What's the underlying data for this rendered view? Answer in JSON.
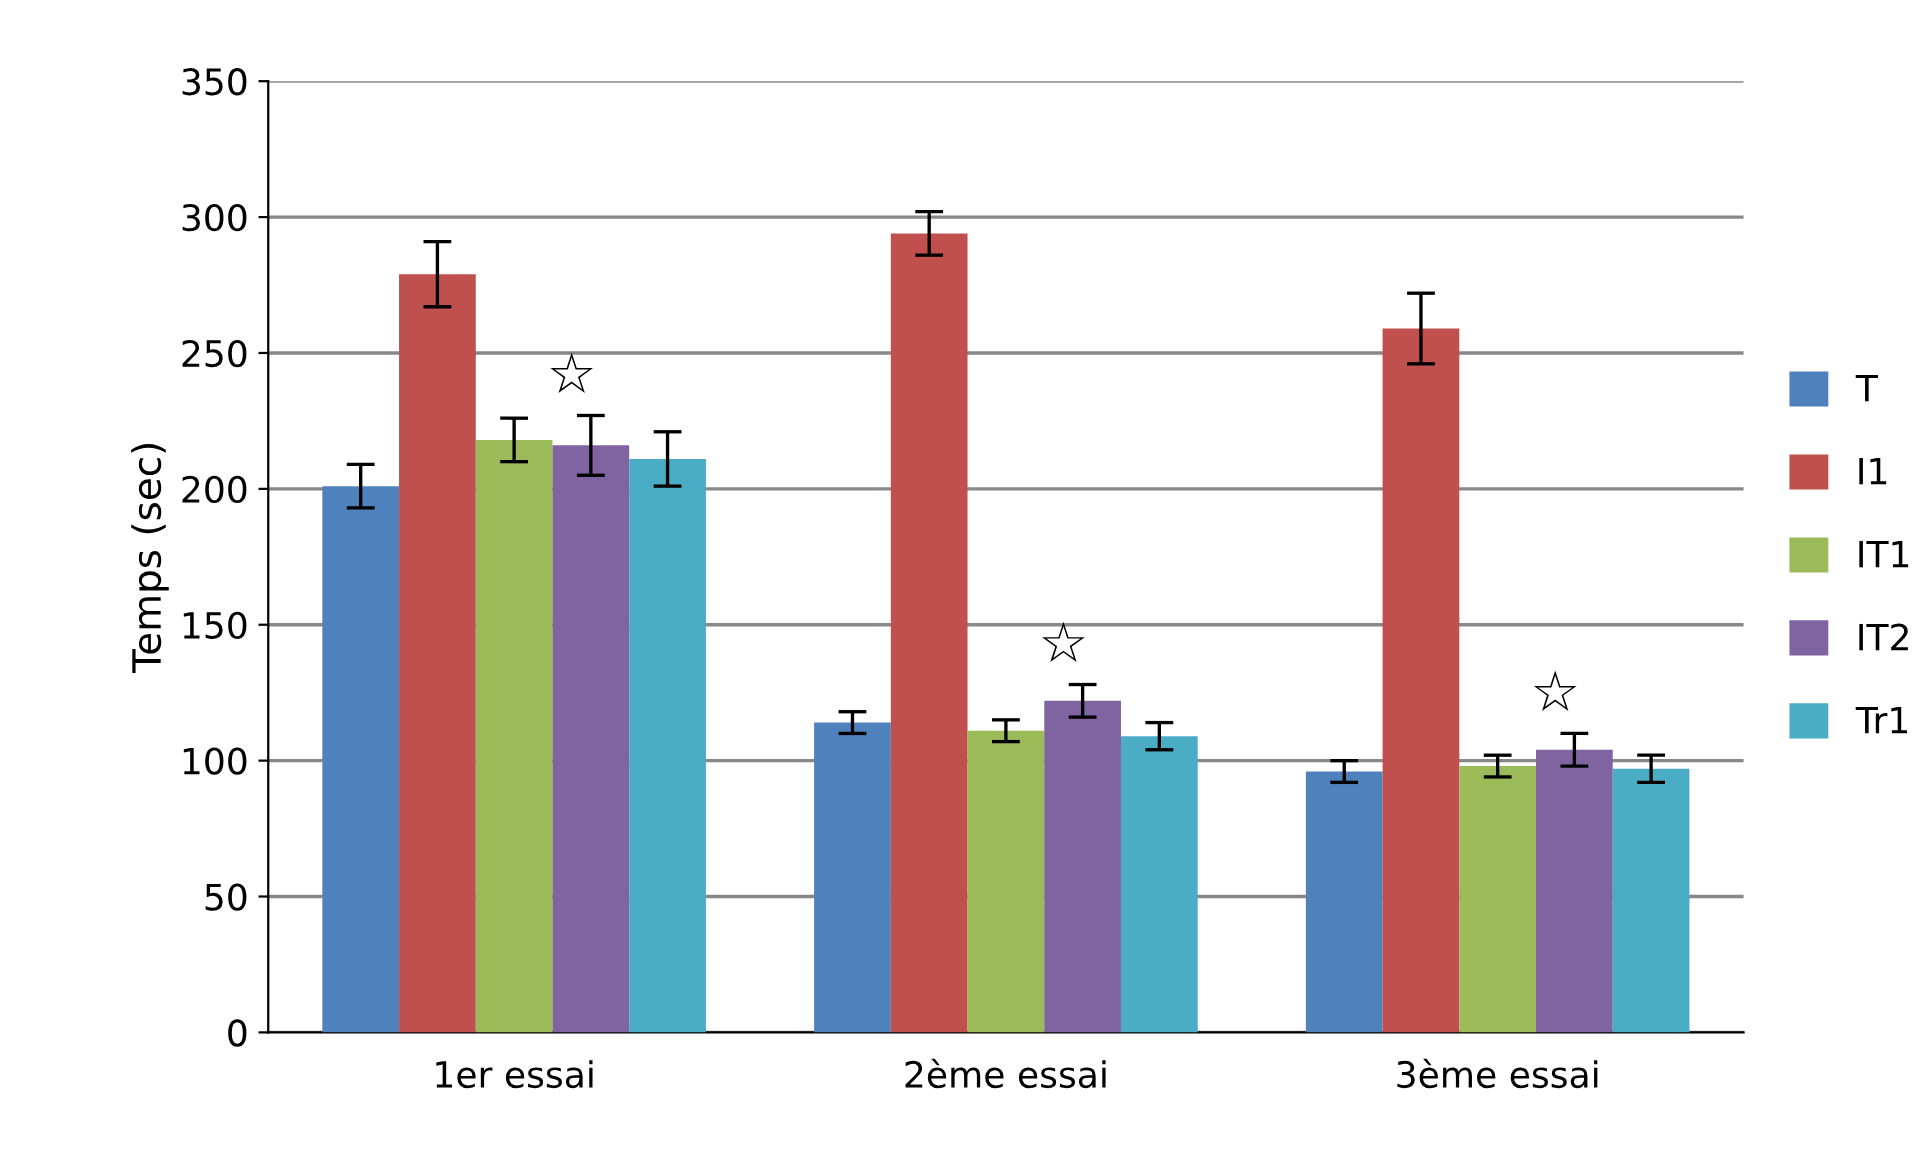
{
  "chart_data": {
    "type": "bar",
    "ylabel": "Temps (sec)",
    "categories": [
      "1er essai",
      "2ème essai",
      "3ème essai"
    ],
    "series": [
      {
        "name": "T",
        "color": "#4f81bd",
        "values": [
          201,
          114,
          96
        ],
        "errors": [
          8,
          4,
          4
        ]
      },
      {
        "name": "I1",
        "color": "#c0504d",
        "values": [
          279,
          294,
          259
        ],
        "errors": [
          12,
          8,
          13
        ]
      },
      {
        "name": "IT1",
        "color": "#9bbb59",
        "values": [
          218,
          111,
          98
        ],
        "errors": [
          8,
          4,
          4
        ]
      },
      {
        "name": "IT2",
        "color": "#8064a2",
        "values": [
          216,
          122,
          104
        ],
        "errors": [
          11,
          6,
          6
        ]
      },
      {
        "name": "Tr1",
        "color": "#4bacc6",
        "values": [
          211,
          109,
          97
        ],
        "errors": [
          10,
          5,
          5
        ]
      }
    ],
    "annotations": [
      "☆",
      "☆",
      "☆"
    ],
    "ylim": [
      0,
      350
    ],
    "yticks": [
      0,
      50,
      100,
      150,
      200,
      250,
      300,
      350
    ],
    "grid": "y",
    "legend": "right"
  }
}
